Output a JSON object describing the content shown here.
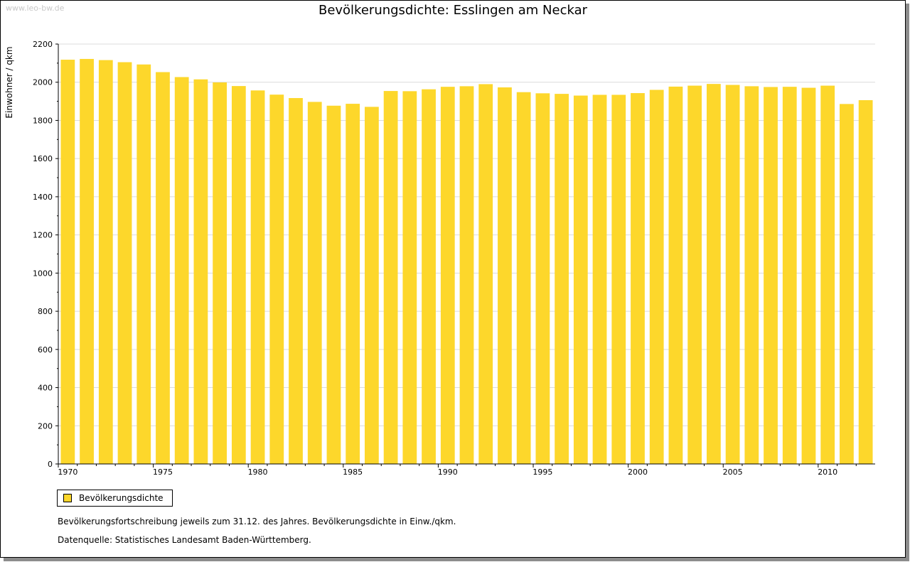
{
  "watermark": "www.leo-bw.de",
  "colors": {
    "bar": "#fdd72b",
    "grid": "#dcdcdc",
    "axis": "#000000"
  },
  "chart_data": {
    "type": "bar",
    "title": "Bevölkerungsdichte: Esslingen am Neckar",
    "xlabel": "",
    "ylabel": "Einwohner / qkm",
    "ylim": [
      0,
      2200
    ],
    "yticks": [
      0,
      200,
      400,
      600,
      800,
      1000,
      1200,
      1400,
      1600,
      1800,
      2000,
      2200
    ],
    "xtick_labels": [
      "1970",
      "1975",
      "1980",
      "1985",
      "1990",
      "1995",
      "2000",
      "2005",
      "2010"
    ],
    "grid": true,
    "legend_position": "bottom-left",
    "categories": [
      1970,
      1971,
      1972,
      1973,
      1974,
      1975,
      1976,
      1977,
      1978,
      1979,
      1980,
      1981,
      1982,
      1983,
      1984,
      1985,
      1986,
      1987,
      1988,
      1989,
      1990,
      1991,
      1992,
      1993,
      1994,
      1995,
      1996,
      1997,
      1998,
      1999,
      2000,
      2001,
      2002,
      2003,
      2004,
      2005,
      2006,
      2007,
      2008,
      2009,
      2010,
      2011,
      2012
    ],
    "series": [
      {
        "name": "Bevölkerungsdichte",
        "values": [
          2118,
          2122,
          2116,
          2105,
          2093,
          2053,
          2027,
          2015,
          1999,
          1980,
          1957,
          1935,
          1917,
          1897,
          1877,
          1887,
          1871,
          1954,
          1953,
          1963,
          1976,
          1979,
          1990,
          1973,
          1948,
          1942,
          1939,
          1930,
          1934,
          1934,
          1943,
          1960,
          1977,
          1982,
          1991,
          1986,
          1979,
          1975,
          1976,
          1971,
          1982,
          1886,
          1906
        ]
      }
    ]
  },
  "legend": {
    "label": "Bevölkerungsdichte"
  },
  "footnotes": {
    "note1": "Bevölkerungsfortschreibung jeweils zum 31.12. des Jahres. Bevölkerungsdichte in Einw./qkm.",
    "note2": "Datenquelle: Statistisches Landesamt Baden-Württemberg."
  }
}
